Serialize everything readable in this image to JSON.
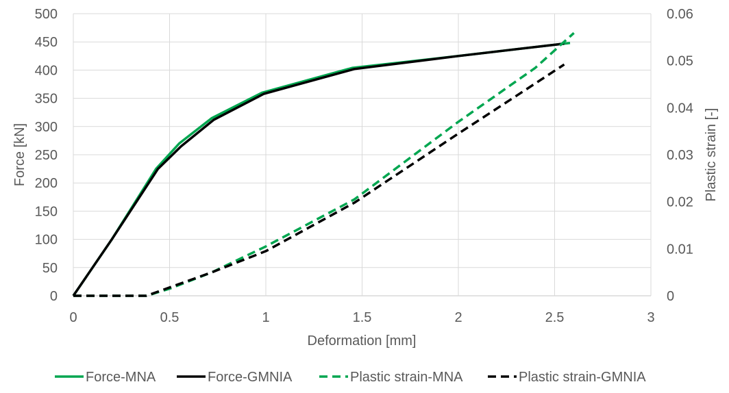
{
  "chart_data": {
    "type": "line",
    "title": "",
    "xlabel": "Deformation [mm]",
    "ylabel": "Force [kN]",
    "y2label": "Plastic strain [-]",
    "xlim": [
      0,
      3
    ],
    "ylim": [
      0,
      500
    ],
    "y2lim": [
      0,
      0.06
    ],
    "xticks": [
      "0",
      "0.5",
      "1",
      "1.5",
      "2",
      "2.5",
      "3"
    ],
    "yticks": [
      "0",
      "50",
      "100",
      "150",
      "200",
      "250",
      "300",
      "350",
      "400",
      "450",
      "500"
    ],
    "y2ticks": [
      "0",
      "0.01",
      "0.02",
      "0.03",
      "0.04",
      "0.05",
      "0.06"
    ],
    "grid": true,
    "legend_position": "bottom",
    "series": [
      {
        "name": "Force-MNA",
        "axis": "left",
        "color": "#00a650",
        "dash": "solid",
        "x": [
          0,
          0.2,
          0.43,
          0.55,
          0.72,
          0.98,
          1.45,
          2.0,
          2.55,
          2.58
        ],
        "y": [
          0,
          100,
          225,
          270,
          315,
          360,
          404,
          425,
          447,
          448
        ]
      },
      {
        "name": "Force-GMNIA",
        "axis": "left",
        "color": "#000000",
        "dash": "solid",
        "x": [
          0,
          0.2,
          0.44,
          0.56,
          0.73,
          0.99,
          1.46,
          2.0,
          2.55
        ],
        "y": [
          0,
          100,
          225,
          265,
          312,
          358,
          402,
          425,
          447
        ]
      },
      {
        "name": "Plastic strain-MNA",
        "axis": "right",
        "color": "#00a650",
        "dash": "dashed",
        "x": [
          0,
          0.3,
          0.38,
          0.5,
          0.72,
          1.0,
          1.46,
          2.0,
          2.4,
          2.6
        ],
        "y": [
          0,
          0,
          0,
          0.0015,
          0.005,
          0.0105,
          0.0205,
          0.037,
          0.0485,
          0.0559
        ]
      },
      {
        "name": "Plastic strain-GMNIA",
        "axis": "right",
        "color": "#000000",
        "dash": "dashed",
        "x": [
          0,
          0.3,
          0.38,
          0.55,
          0.72,
          1.0,
          1.46,
          2.0,
          2.3,
          2.55
        ],
        "y": [
          0,
          0,
          0,
          0.0025,
          0.005,
          0.0095,
          0.0198,
          0.0345,
          0.0425,
          0.0492
        ]
      }
    ]
  }
}
